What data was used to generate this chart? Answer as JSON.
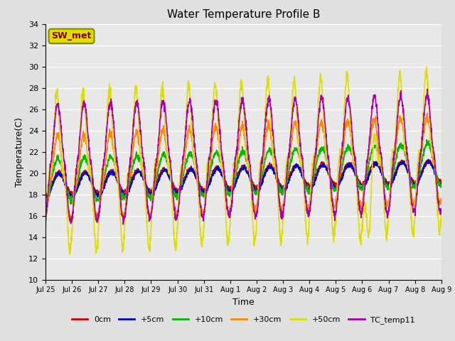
{
  "title": "Water Temperature Profile B",
  "xlabel": "Time",
  "ylabel": "Temperature(C)",
  "ylim": [
    10,
    34
  ],
  "yticks": [
    10,
    12,
    14,
    16,
    18,
    20,
    22,
    24,
    26,
    28,
    30,
    32,
    34
  ],
  "fig_bg_color": "#e0e0e0",
  "plot_bg_color": "#e8e8e8",
  "series": {
    "0cm": {
      "color": "#cc0000",
      "lw": 1.2
    },
    "+5cm": {
      "color": "#0000cc",
      "lw": 1.2
    },
    "+10cm": {
      "color": "#00bb00",
      "lw": 1.2
    },
    "+30cm": {
      "color": "#ff8800",
      "lw": 1.2
    },
    "+50cm": {
      "color": "#dddd00",
      "lw": 1.2
    },
    "TC_temp11": {
      "color": "#aa00aa",
      "lw": 1.2
    }
  },
  "legend_label": "SW_met",
  "legend_box_facecolor": "#dddd00",
  "legend_box_edgecolor": "#888800",
  "legend_text_color": "#880000",
  "n_days": 15,
  "samples_per_day": 144,
  "tick_labels": [
    "Jul 25",
    "Jul 26",
    "Jul 27",
    "Jul 28",
    "Jul 29",
    "Jul 30",
    "Jul 31",
    "Aug 1",
    "Aug 2",
    "Aug 3",
    "Aug 4",
    "Aug 5",
    "Aug 6",
    "Aug 7",
    "Aug 8",
    "Aug 9"
  ]
}
